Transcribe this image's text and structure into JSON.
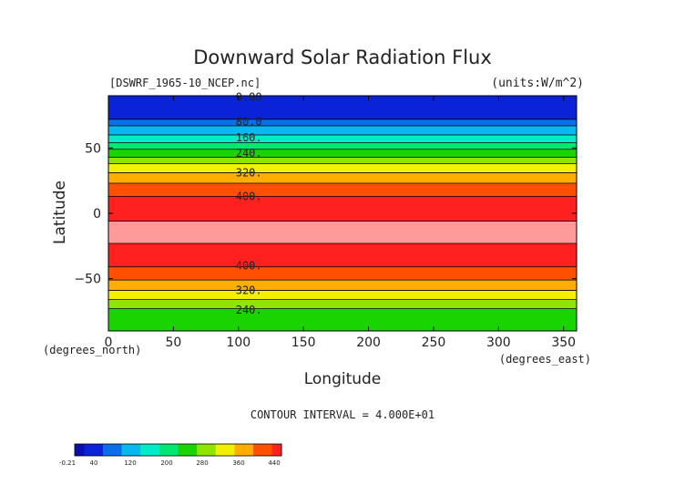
{
  "chart_data": {
    "type": "heatmap",
    "title": "Downward Solar Radiation Flux",
    "source_label": "[DSWRF_1965-10_NCEP.nc]",
    "units_label": "(units:W/m^2)",
    "xlabel": "Longitude",
    "ylabel": "Latitude",
    "x_unit_label": "(degrees_east)",
    "y_unit_label": "(degrees_north)",
    "xlim": [
      0,
      360
    ],
    "ylim": [
      -90,
      90
    ],
    "x_ticks": [
      0,
      50,
      100,
      150,
      200,
      250,
      300,
      350
    ],
    "y_ticks": [
      -50,
      0,
      50
    ],
    "contour_interval_label": "CONTOUR INTERVAL = 4.000E+01",
    "contour_interval": 40,
    "contour_labels": [
      {
        "text": "0.00",
        "lat": 89
      },
      {
        "text": "80.0",
        "lat": 70
      },
      {
        "text": "160.",
        "lat": 58
      },
      {
        "text": "240.",
        "lat": 46
      },
      {
        "text": "320.",
        "lat": 31
      },
      {
        "text": "400.",
        "lat": 13
      },
      {
        "text": "400.",
        "lat": -40
      },
      {
        "text": "320.",
        "lat": -59
      },
      {
        "text": "240.",
        "lat": -74
      }
    ],
    "bands": [
      {
        "lat_top": 90,
        "lat_bottom": 72,
        "value": 20,
        "color": "#0a23d6"
      },
      {
        "lat_top": 72,
        "lat_bottom": 67,
        "value": 60,
        "color": "#0a6fe8"
      },
      {
        "lat_top": 67,
        "lat_bottom": 60,
        "value": 100,
        "color": "#09b8ee"
      },
      {
        "lat_top": 60,
        "lat_bottom": 54,
        "value": 140,
        "color": "#00ecc8"
      },
      {
        "lat_top": 54,
        "lat_bottom": 49,
        "value": 180,
        "color": "#00e872"
      },
      {
        "lat_top": 49,
        "lat_bottom": 43,
        "value": 220,
        "color": "#19d400"
      },
      {
        "lat_top": 43,
        "lat_bottom": 38,
        "value": 260,
        "color": "#8fe400"
      },
      {
        "lat_top": 38,
        "lat_bottom": 31,
        "value": 300,
        "color": "#f2f000"
      },
      {
        "lat_top": 31,
        "lat_bottom": 23,
        "value": 340,
        "color": "#ffae00"
      },
      {
        "lat_top": 23,
        "lat_bottom": 13,
        "value": 380,
        "color": "#ff5000"
      },
      {
        "lat_top": 13,
        "lat_bottom": -6,
        "value": 420,
        "color": "#ff2020"
      },
      {
        "lat_top": -6,
        "lat_bottom": -23,
        "value": 440,
        "color": "#ff9a9a"
      },
      {
        "lat_top": -23,
        "lat_bottom": -41,
        "value": 420,
        "color": "#ff2020"
      },
      {
        "lat_top": -41,
        "lat_bottom": -51,
        "value": 380,
        "color": "#ff5000"
      },
      {
        "lat_top": -51,
        "lat_bottom": -59,
        "value": 340,
        "color": "#ffae00"
      },
      {
        "lat_top": -59,
        "lat_bottom": -66,
        "value": 300,
        "color": "#f2f000"
      },
      {
        "lat_top": -66,
        "lat_bottom": -73,
        "value": 260,
        "color": "#8fe400"
      },
      {
        "lat_top": -73,
        "lat_bottom": -90,
        "value": 220,
        "color": "#19d400"
      }
    ],
    "colorbar": {
      "tick_labels": [
        "-0.21",
        "40",
        "120",
        "200",
        "280",
        "360",
        "440"
      ],
      "tick_values": [
        -0.21,
        40,
        120,
        200,
        280,
        360,
        440
      ],
      "vmin": -0.21,
      "vmax": 440,
      "stops": [
        {
          "value": 0,
          "color": "#0a10b0"
        },
        {
          "value": 40,
          "color": "#0a23d6"
        },
        {
          "value": 80,
          "color": "#0a6fe8"
        },
        {
          "value": 120,
          "color": "#09b8ee"
        },
        {
          "value": 160,
          "color": "#00ecc8"
        },
        {
          "value": 200,
          "color": "#00e872"
        },
        {
          "value": 240,
          "color": "#19d400"
        },
        {
          "value": 280,
          "color": "#8fe400"
        },
        {
          "value": 320,
          "color": "#f2f000"
        },
        {
          "value": 360,
          "color": "#ffae00"
        },
        {
          "value": 400,
          "color": "#ff5000"
        },
        {
          "value": 440,
          "color": "#ff2020"
        }
      ]
    }
  }
}
